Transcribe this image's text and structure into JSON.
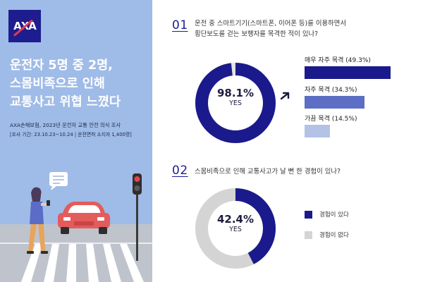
{
  "brand": {
    "logo_text": "AXA"
  },
  "left_panel": {
    "headline_lines": [
      "운전자 5명 중 2명,",
      "스몸비족으로 인해",
      "교통사고 위협 느꼈다"
    ],
    "survey_title": "AXA손해보험, 2023년 운전자 교통 안전 의식 조사",
    "survey_detail": "[조사 기간: 23.10.23~10.24 | 운전면허 소지자 1,400명]"
  },
  "q1": {
    "number": "01",
    "text_line1": "운전 중 스마트기기(스마트폰, 이어폰 등)를 이용하면서",
    "text_line2": "횡단보도를 걷는 보행자를 목격한 적이 있나?",
    "donut_pct": "98.1%",
    "donut_yes": "YES",
    "bars": [
      {
        "label": "매우 자주 목격 (49.3%)",
        "value": 49.3,
        "color": "#1a1a8c"
      },
      {
        "label": "자주 목격 (34.3%)",
        "value": 34.3,
        "color": "#5c6fc4"
      },
      {
        "label": "가끔 목격 (14.5%)",
        "value": 14.5,
        "color": "#b3c2e6"
      }
    ]
  },
  "q2": {
    "number": "02",
    "text": "스몸비족으로 인해 교통사고가 날 뻔 한 경험이 있나?",
    "donut_pct": "42.4%",
    "donut_yes": "YES",
    "legend": [
      {
        "label": "경험이 있다",
        "color": "#1a1a8c"
      },
      {
        "label": "경험이 없다",
        "color": "#d4d4d4"
      }
    ]
  },
  "chart_data": [
    {
      "type": "pie",
      "categories": [
        "YES",
        ""
      ],
      "values": [
        98.1,
        1.9
      ],
      "title": ""
    },
    {
      "type": "bar",
      "categories": [
        "매우 자주 목격",
        "자주 목격",
        "가끔 목격"
      ],
      "values": [
        49.3,
        34.3,
        14.5
      ],
      "title": ""
    },
    {
      "type": "pie",
      "categories": [
        "경험이 있다",
        "경험이 없다"
      ],
      "values": [
        42.4,
        57.6
      ],
      "title": ""
    }
  ]
}
